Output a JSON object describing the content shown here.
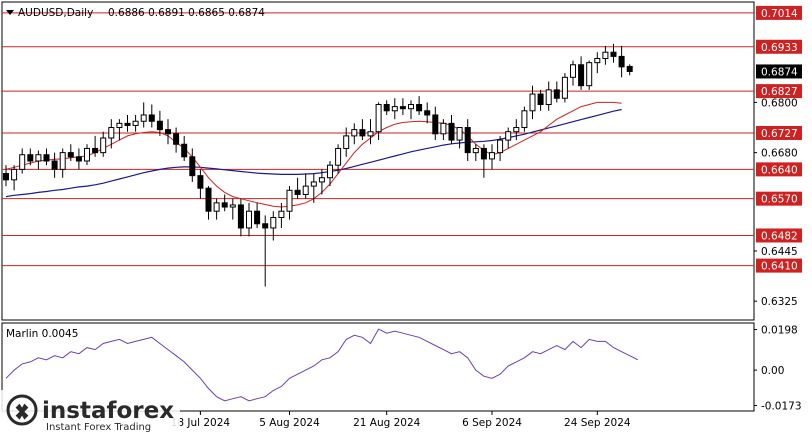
{
  "header": {
    "symbol": "AUDUSD,Daily",
    "ohlc": "0.6886 0.6891 0.6865 0.6874"
  },
  "indicator": {
    "label": "Marlin 0.0045"
  },
  "watermark": {
    "brand": "instaforex",
    "tagline": "Instant Forex Trading"
  },
  "colors": {
    "bull": "#ffffff",
    "bear": "#000000",
    "level": "#cc2222",
    "ma_fast": "#cc2222",
    "ma_slow": "#1a1a8c",
    "oscillator": "#6a3fb5",
    "current_price_bg": "#000000"
  },
  "chart_data": [
    {
      "type": "candlestick",
      "title": "AUDUSD,Daily",
      "ylim": [
        0.628,
        0.704
      ],
      "y_ticks": [
        "0.7014",
        "0.6933",
        "0.6874",
        "0.6827",
        "0.6800",
        "0.6727",
        "0.6680",
        "0.6640",
        "0.6570",
        "0.6482",
        "0.6445",
        "0.6410",
        "0.6325"
      ],
      "x_labels": [
        {
          "label": "18 Jul 2024",
          "index": 24
        },
        {
          "label": "5 Aug 2024",
          "index": 35
        },
        {
          "label": "21 Aug 2024",
          "index": 47
        },
        {
          "label": "6 Sep 2024",
          "index": 60
        },
        {
          "label": "24 Sep 2024",
          "index": 73
        }
      ],
      "levels": [
        {
          "value": 0.7014,
          "label": "0.7014"
        },
        {
          "value": 0.6933,
          "label": "0.6933"
        },
        {
          "value": 0.6827,
          "label": "0.6827"
        },
        {
          "value": 0.6727,
          "label": "0.6727"
        },
        {
          "value": 0.664,
          "label": "0.6640"
        },
        {
          "value": 0.657,
          "label": "0.6570"
        },
        {
          "value": 0.6482,
          "label": "0.6482"
        },
        {
          "value": 0.641,
          "label": "0.6410"
        }
      ],
      "current_price": {
        "value": 0.6874,
        "label": "0.6874"
      },
      "candles": [
        [
          0.663,
          0.665,
          0.66,
          0.6615
        ],
        [
          0.6615,
          0.665,
          0.659,
          0.664
        ],
        [
          0.664,
          0.669,
          0.663,
          0.6675
        ],
        [
          0.6675,
          0.669,
          0.665,
          0.666
        ],
        [
          0.666,
          0.6685,
          0.664,
          0.6675
        ],
        [
          0.6675,
          0.669,
          0.665,
          0.666
        ],
        [
          0.666,
          0.668,
          0.662,
          0.664
        ],
        [
          0.664,
          0.669,
          0.662,
          0.668
        ],
        [
          0.668,
          0.67,
          0.666,
          0.667
        ],
        [
          0.667,
          0.669,
          0.664,
          0.666
        ],
        [
          0.666,
          0.67,
          0.665,
          0.669
        ],
        [
          0.669,
          0.672,
          0.667,
          0.668
        ],
        [
          0.668,
          0.673,
          0.667,
          0.6715
        ],
        [
          0.6715,
          0.676,
          0.669,
          0.674
        ],
        [
          0.674,
          0.676,
          0.671,
          0.675
        ],
        [
          0.675,
          0.677,
          0.673,
          0.6745
        ],
        [
          0.6745,
          0.677,
          0.673,
          0.6755
        ],
        [
          0.6755,
          0.68,
          0.674,
          0.677
        ],
        [
          0.677,
          0.6795,
          0.674,
          0.6755
        ],
        [
          0.6755,
          0.678,
          0.672,
          0.6735
        ],
        [
          0.6735,
          0.676,
          0.67,
          0.6725
        ],
        [
          0.6725,
          0.674,
          0.668,
          0.67
        ],
        [
          0.67,
          0.672,
          0.666,
          0.667
        ],
        [
          0.667,
          0.669,
          0.661,
          0.6625
        ],
        [
          0.6625,
          0.664,
          0.657,
          0.6595
        ],
        [
          0.6595,
          0.66,
          0.652,
          0.654
        ],
        [
          0.654,
          0.657,
          0.652,
          0.656
        ],
        [
          0.656,
          0.658,
          0.654,
          0.655
        ],
        [
          0.655,
          0.657,
          0.652,
          0.6555
        ],
        [
          0.6555,
          0.657,
          0.648,
          0.65
        ],
        [
          0.65,
          0.656,
          0.648,
          0.654
        ],
        [
          0.654,
          0.656,
          0.65,
          0.651
        ],
        [
          0.651,
          0.653,
          0.636,
          0.65
        ],
        [
          0.65,
          0.654,
          0.647,
          0.6525
        ],
        [
          0.6525,
          0.656,
          0.65,
          0.654
        ],
        [
          0.654,
          0.66,
          0.652,
          0.659
        ],
        [
          0.659,
          0.662,
          0.657,
          0.658
        ],
        [
          0.658,
          0.663,
          0.657,
          0.66
        ],
        [
          0.66,
          0.663,
          0.656,
          0.661
        ],
        [
          0.661,
          0.664,
          0.658,
          0.662
        ],
        [
          0.662,
          0.666,
          0.66,
          0.665
        ],
        [
          0.665,
          0.67,
          0.663,
          0.669
        ],
        [
          0.669,
          0.674,
          0.667,
          0.672
        ],
        [
          0.672,
          0.675,
          0.67,
          0.6735
        ],
        [
          0.6735,
          0.676,
          0.671,
          0.672
        ],
        [
          0.672,
          0.676,
          0.67,
          0.673
        ],
        [
          0.673,
          0.68,
          0.671,
          0.6795
        ],
        [
          0.6795,
          0.6805,
          0.677,
          0.678
        ],
        [
          0.678,
          0.681,
          0.676,
          0.679
        ],
        [
          0.679,
          0.681,
          0.677,
          0.6785
        ],
        [
          0.6785,
          0.6805,
          0.676,
          0.6795
        ],
        [
          0.6795,
          0.6815,
          0.677,
          0.678
        ],
        [
          0.678,
          0.68,
          0.675,
          0.677
        ],
        [
          0.677,
          0.679,
          0.671,
          0.6725
        ],
        [
          0.6725,
          0.676,
          0.671,
          0.675
        ],
        [
          0.675,
          0.677,
          0.67,
          0.671
        ],
        [
          0.671,
          0.674,
          0.669,
          0.674
        ],
        [
          0.674,
          0.676,
          0.666,
          0.668
        ],
        [
          0.668,
          0.67,
          0.666,
          0.669
        ],
        [
          0.669,
          0.67,
          0.662,
          0.6665
        ],
        [
          0.6665,
          0.67,
          0.664,
          0.668
        ],
        [
          0.668,
          0.672,
          0.666,
          0.671
        ],
        [
          0.671,
          0.674,
          0.669,
          0.673
        ],
        [
          0.673,
          0.676,
          0.671,
          0.674
        ],
        [
          0.674,
          0.679,
          0.673,
          0.678
        ],
        [
          0.678,
          0.684,
          0.676,
          0.682
        ],
        [
          0.682,
          0.683,
          0.678,
          0.6795
        ],
        [
          0.6795,
          0.685,
          0.678,
          0.683
        ],
        [
          0.683,
          0.685,
          0.68,
          0.681
        ],
        [
          0.681,
          0.687,
          0.68,
          0.686
        ],
        [
          0.686,
          0.69,
          0.684,
          0.689
        ],
        [
          0.689,
          0.691,
          0.683,
          0.684
        ],
        [
          0.684,
          0.69,
          0.683,
          0.6895
        ],
        [
          0.6895,
          0.692,
          0.687,
          0.6905
        ],
        [
          0.6905,
          0.6935,
          0.689,
          0.692
        ],
        [
          0.692,
          0.694,
          0.6895,
          0.691
        ],
        [
          0.691,
          0.6935,
          0.686,
          0.6885
        ],
        [
          0.6886,
          0.6891,
          0.6865,
          0.6874
        ]
      ],
      "ma_fast": [
        0.664,
        0.6645,
        0.665,
        0.6655,
        0.666,
        0.6662,
        0.6664,
        0.6665,
        0.6668,
        0.667,
        0.6672,
        0.668,
        0.669,
        0.67,
        0.671,
        0.672,
        0.6725,
        0.6728,
        0.673,
        0.6728,
        0.672,
        0.6705,
        0.669,
        0.667,
        0.6645,
        0.662,
        0.66,
        0.6585,
        0.6575,
        0.657,
        0.6565,
        0.656,
        0.6556,
        0.6552,
        0.655,
        0.6552,
        0.6555,
        0.656,
        0.657,
        0.6585,
        0.6605,
        0.663,
        0.6655,
        0.668,
        0.67,
        0.6715,
        0.673,
        0.674,
        0.6748,
        0.6752,
        0.6754,
        0.6755,
        0.6754,
        0.6752,
        0.675,
        0.6745,
        0.6735,
        0.672,
        0.67,
        0.6685,
        0.6675,
        0.668,
        0.669,
        0.67,
        0.671,
        0.672,
        0.673,
        0.6745,
        0.676,
        0.677,
        0.678,
        0.679,
        0.6795,
        0.68,
        0.68,
        0.68,
        0.6798
      ],
      "ma_slow": [
        0.6575,
        0.6578,
        0.658,
        0.6582,
        0.6585,
        0.6587,
        0.659,
        0.6592,
        0.6595,
        0.6598,
        0.66,
        0.6603,
        0.6607,
        0.6612,
        0.6617,
        0.6622,
        0.6627,
        0.6632,
        0.6636,
        0.664,
        0.6643,
        0.6645,
        0.6646,
        0.6646,
        0.6645,
        0.6643,
        0.6641,
        0.6639,
        0.6637,
        0.6635,
        0.6633,
        0.6631,
        0.663,
        0.6629,
        0.6628,
        0.6628,
        0.6628,
        0.6629,
        0.663,
        0.6632,
        0.6635,
        0.6638,
        0.6642,
        0.6647,
        0.6652,
        0.6657,
        0.6662,
        0.6667,
        0.6672,
        0.6677,
        0.6682,
        0.6686,
        0.669,
        0.6694,
        0.6698,
        0.6701,
        0.6703,
        0.6705,
        0.6706,
        0.6707,
        0.6709,
        0.6712,
        0.6716,
        0.672,
        0.6724,
        0.6729,
        0.6734,
        0.6739,
        0.6744,
        0.6749,
        0.6754,
        0.6759,
        0.6764,
        0.6769,
        0.6774,
        0.6779,
        0.6783
      ]
    },
    {
      "type": "line",
      "title": "Marlin 0.0045",
      "ylim": [
        -0.02,
        0.023
      ],
      "y_ticks": [
        "0.0198",
        "0.00",
        "-0.0173"
      ],
      "series": [
        {
          "values": [
            -0.004,
            0.0,
            0.003,
            0.004,
            0.006,
            0.005,
            0.007,
            0.006,
            0.009,
            0.008,
            0.011,
            0.01,
            0.013,
            0.014,
            0.015,
            0.013,
            0.014,
            0.015,
            0.016,
            0.013,
            0.01,
            0.007,
            0.004,
            0.0,
            -0.004,
            -0.009,
            -0.013,
            -0.015,
            -0.014,
            -0.013,
            -0.015,
            -0.014,
            -0.013,
            -0.01,
            -0.008,
            -0.004,
            -0.002,
            0.0,
            0.002,
            0.005,
            0.006,
            0.009,
            0.015,
            0.017,
            0.016,
            0.013,
            0.02,
            0.018,
            0.019,
            0.018,
            0.017,
            0.016,
            0.014,
            0.012,
            0.01,
            0.008,
            0.009,
            0.006,
            0.0,
            -0.003,
            -0.004,
            -0.002,
            0.002,
            0.004,
            0.006,
            0.009,
            0.008,
            0.01,
            0.012,
            0.01,
            0.014,
            0.011,
            0.015,
            0.014,
            0.014,
            0.011,
            0.009,
            0.007,
            0.005
          ]
        }
      ]
    }
  ]
}
